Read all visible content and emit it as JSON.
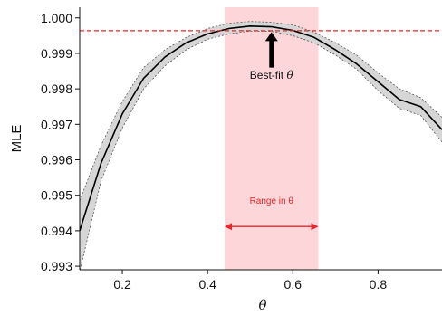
{
  "chart_data": {
    "type": "line",
    "xlabel": "θ",
    "ylabel": "MLE",
    "xlim": [
      0.1,
      0.95
    ],
    "ylim": [
      0.9929,
      1.0003
    ],
    "x_ticks": [
      {
        "value": 0.2,
        "label": "0.2"
      },
      {
        "value": 0.4,
        "label": "0.4"
      },
      {
        "value": 0.6,
        "label": "0.6"
      },
      {
        "value": 0.8,
        "label": "0.8"
      }
    ],
    "y_ticks": [
      {
        "value": 0.993,
        "label": "0.993"
      },
      {
        "value": 0.994,
        "label": "0.994"
      },
      {
        "value": 0.995,
        "label": "0.995"
      },
      {
        "value": 0.996,
        "label": "0.996"
      },
      {
        "value": 0.997,
        "label": "0.997"
      },
      {
        "value": 0.998,
        "label": "0.998"
      },
      {
        "value": 0.999,
        "label": "0.999"
      },
      {
        "value": 1.0,
        "label": "1.000"
      }
    ],
    "grid": false,
    "series": [
      {
        "color": "#000000",
        "x": [
          0.1,
          0.15,
          0.2,
          0.25,
          0.3,
          0.35,
          0.4,
          0.45,
          0.5,
          0.55,
          0.6,
          0.65,
          0.7,
          0.75,
          0.8,
          0.85,
          0.9,
          0.95
        ],
        "y": [
          0.994,
          0.9959,
          0.9973,
          0.9983,
          0.9989,
          0.9993,
          0.99955,
          0.9997,
          0.99977,
          0.99975,
          0.99965,
          0.99945,
          0.9991,
          0.9987,
          0.9982,
          0.9977,
          0.9975,
          0.99685
        ],
        "upper": [
          0.99485,
          0.9964,
          0.99765,
          0.9986,
          0.9991,
          0.99945,
          0.9997,
          0.99985,
          0.9999,
          0.99988,
          0.9998,
          0.9996,
          0.9993,
          0.99895,
          0.99845,
          0.998,
          0.99775,
          0.9972
        ],
        "lower": [
          0.99285,
          0.9954,
          0.9969,
          0.998,
          0.99865,
          0.9991,
          0.9994,
          0.99955,
          0.99963,
          0.99962,
          0.9995,
          0.9993,
          0.99895,
          0.99855,
          0.99795,
          0.99745,
          0.99725,
          0.9965
        ]
      }
    ],
    "reference_line": {
      "y": 0.99964,
      "color": "#e8262b",
      "style": "dashed"
    },
    "shaded_range": {
      "x": [
        0.44,
        0.66
      ],
      "color": "#fcd6d8"
    },
    "annotations": {
      "best_fit": {
        "prefix": "Best-fit ",
        "symbol": "θ",
        "arrow_from": 0.9986,
        "arrow_to": 0.9996,
        "x": 0.55,
        "label_y": 0.99828
      },
      "range": {
        "text": "Range in θ",
        "from": 0.44,
        "to": 0.66,
        "y": 0.99412,
        "label_y": 0.99476,
        "color": "#e8262b"
      }
    }
  }
}
